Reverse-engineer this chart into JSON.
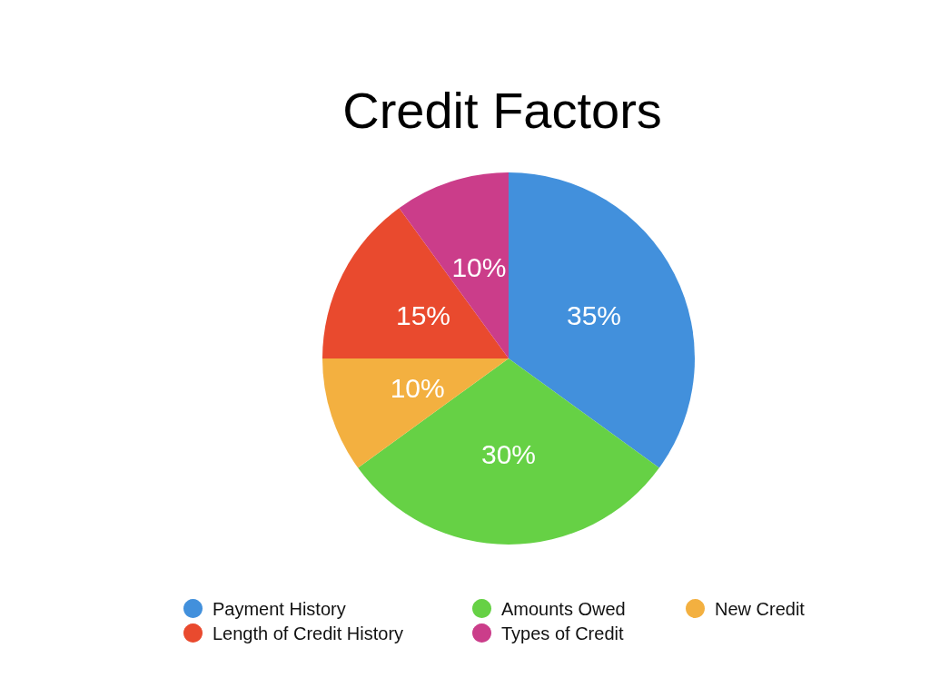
{
  "chart_data": {
    "type": "pie",
    "title": "Credit Factors",
    "categories": [
      "Payment History",
      "Amounts Owed",
      "New Credit",
      "Length of Credit History",
      "Types of Credit"
    ],
    "values": [
      35,
      30,
      10,
      15,
      10
    ],
    "colors": [
      "#4290dc",
      "#66d145",
      "#f3b040",
      "#e94a2e",
      "#cb3d8a"
    ],
    "value_labels": [
      "35%",
      "30%",
      "10%",
      "15%",
      "10%"
    ],
    "legend": "bottom"
  }
}
